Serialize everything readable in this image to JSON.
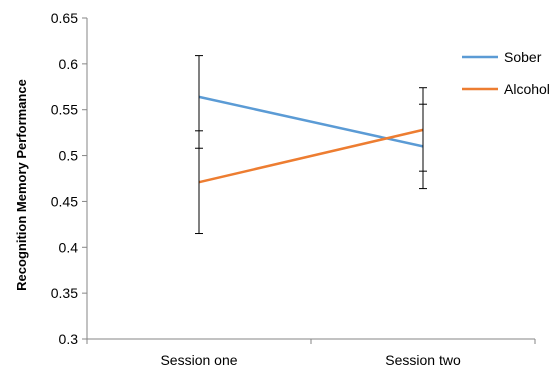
{
  "chart_data": {
    "type": "line",
    "title": "",
    "xlabel": "",
    "ylabel": "Recognition Memory Performance",
    "categories": [
      "Session one",
      "Session two"
    ],
    "ylim": [
      0.3,
      0.65
    ],
    "ytick_step": 0.05,
    "yticks": [
      "0.3",
      "0.35",
      "0.4",
      "0.45",
      "0.5",
      "0.55",
      "0.6",
      "0.65"
    ],
    "grid": false,
    "legend_position": "right",
    "series": [
      {
        "name": "Sober",
        "color": "#5B9BD5",
        "values": [
          0.564,
          0.51
        ],
        "error_low": [
          0.508,
          0.464
        ],
        "error_high": [
          0.609,
          0.556
        ]
      },
      {
        "name": "Alcohol",
        "color": "#ED7D31",
        "values": [
          0.471,
          0.528
        ],
        "error_low": [
          0.415,
          0.483
        ],
        "error_high": [
          0.527,
          0.574
        ]
      }
    ]
  }
}
